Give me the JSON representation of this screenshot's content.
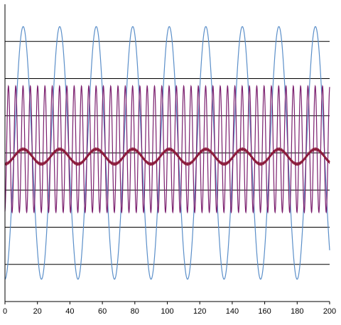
{
  "chart_data": {
    "type": "line",
    "title": "",
    "xlabel": "",
    "ylabel": "",
    "xlim": [
      0,
      200
    ],
    "ylim": [
      -4,
      4
    ],
    "x_ticks": [
      "0",
      "20",
      "40",
      "60",
      "80",
      "100",
      "120",
      "140",
      "160",
      "180",
      "200"
    ],
    "gridlines_y": [
      -3,
      -2,
      -1,
      0,
      1,
      2,
      3
    ],
    "grid": "horizontal",
    "legend": "none",
    "series": [
      {
        "color": "#5b8fc9",
        "amplitude": 3.4,
        "period": 22.5,
        "phase_x": 5.6,
        "offset": 0,
        "marker": "none"
      },
      {
        "color": "#7b1f6e",
        "amplitude": 1.7,
        "period": 4.5,
        "phase_x": 1.0,
        "offset": 0.1,
        "marker": "none"
      },
      {
        "color": "#8b1a3a",
        "amplitude": 0.2,
        "period": 22.5,
        "phase_x": 5.6,
        "offset": -0.1,
        "marker": "dense"
      }
    ]
  }
}
